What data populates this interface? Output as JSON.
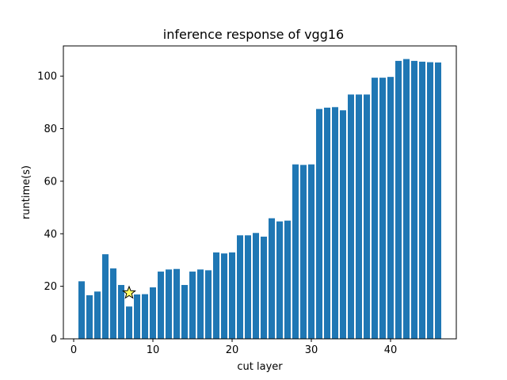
{
  "chart_data": {
    "type": "bar",
    "title": "inference response of vgg16",
    "xlabel": "cut layer",
    "ylabel": "runtime(s)",
    "xlim": [
      -1.3,
      48.3
    ],
    "ylim": [
      0,
      111.5
    ],
    "xticks": [
      0,
      10,
      20,
      30,
      40
    ],
    "yticks": [
      0,
      20,
      40,
      60,
      80,
      100
    ],
    "grid": false,
    "bar_color": "#1f77b4",
    "x": [
      1,
      2,
      3,
      4,
      5,
      6,
      7,
      8,
      9,
      10,
      11,
      12,
      13,
      14,
      15,
      16,
      17,
      18,
      19,
      20,
      21,
      22,
      23,
      24,
      25,
      26,
      27,
      28,
      29,
      30,
      31,
      32,
      33,
      34,
      35,
      36,
      37,
      38,
      39,
      40,
      41,
      42,
      43,
      44,
      45,
      46
    ],
    "values": [
      21.9,
      16.6,
      18.0,
      32.2,
      26.8,
      20.5,
      12.3,
      16.9,
      17.0,
      19.6,
      25.6,
      26.4,
      26.6,
      20.5,
      25.6,
      26.4,
      26.1,
      32.9,
      32.5,
      32.9,
      39.4,
      39.4,
      40.3,
      38.9,
      45.9,
      44.7,
      45.0,
      66.4,
      66.2,
      66.4,
      87.5,
      88.0,
      88.2,
      87.0,
      93.0,
      93.0,
      93.0,
      99.4,
      99.4,
      99.7,
      105.8,
      106.5,
      105.8,
      105.5,
      105.3,
      105.2
    ],
    "marker": {
      "shape": "star",
      "x": 7,
      "y": 17.5,
      "fill": "#ffff66",
      "stroke": "#000000"
    }
  }
}
